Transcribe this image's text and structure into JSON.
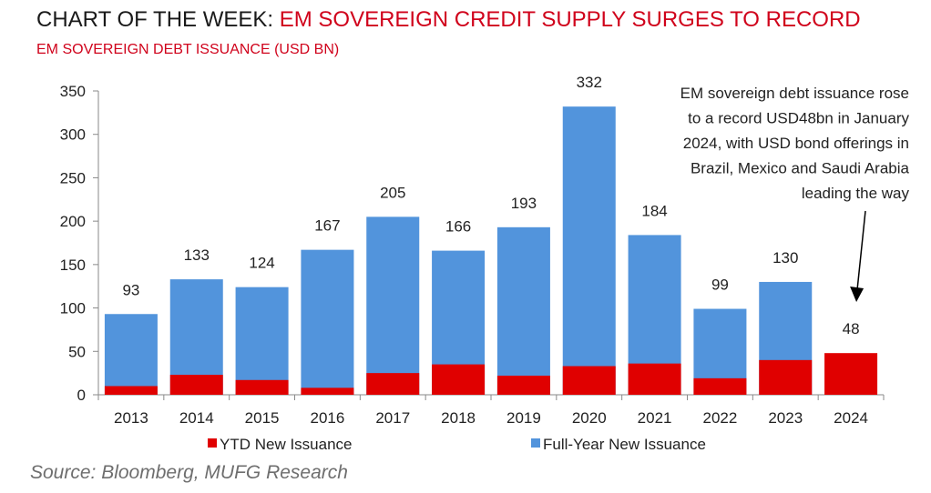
{
  "header": {
    "title_prefix": "CHART OF THE WEEK: ",
    "title_main": "EM SOVEREIGN CREDIT SUPPLY SURGES TO RECORD",
    "subtitle": "EM SOVEREIGN DEBT ISSUANCE (USD BN)"
  },
  "footer": {
    "source": "Source: Bloomberg, MUFG Research"
  },
  "colors": {
    "ytd": "#e00000",
    "full_year": "#5294dc",
    "axis": "#8a8a8a",
    "title_red": "#d0021b"
  },
  "chart_data": {
    "type": "bar",
    "stacked": false,
    "title": "EM SOVEREIGN DEBT ISSUANCE (USD BN)",
    "categories": [
      "2013",
      "2014",
      "2015",
      "2016",
      "2017",
      "2018",
      "2019",
      "2020",
      "2021",
      "2022",
      "2023",
      "2024"
    ],
    "series": [
      {
        "name": "Full-Year New Issuance",
        "color": "#5294dc",
        "values": [
          93,
          133,
          124,
          167,
          205,
          166,
          193,
          332,
          184,
          99,
          130,
          null
        ]
      },
      {
        "name": "YTD New Issuance",
        "color": "#e00000",
        "values": [
          10,
          23,
          17,
          8,
          25,
          35,
          22,
          33,
          36,
          19,
          40,
          48
        ]
      }
    ],
    "data_labels": [
      "93",
      "133",
      "124",
      "167",
      "205",
      "166",
      "193",
      "332",
      "184",
      "99",
      "130",
      "48"
    ],
    "ylim": [
      0,
      350
    ],
    "yticks": [
      0,
      50,
      100,
      150,
      200,
      250,
      300,
      350
    ],
    "legend": [
      "YTD New Issuance",
      "Full-Year New Issuance"
    ],
    "legend_position": "bottom",
    "annotation": {
      "lines": [
        "EM sovereign debt issuance rose",
        "to a record USD48bn in January",
        "2024, with USD bond offerings in",
        "Brazil, Mexico and Saudi Arabia",
        "leading the way"
      ],
      "points_to": "2024"
    },
    "grid": false
  }
}
